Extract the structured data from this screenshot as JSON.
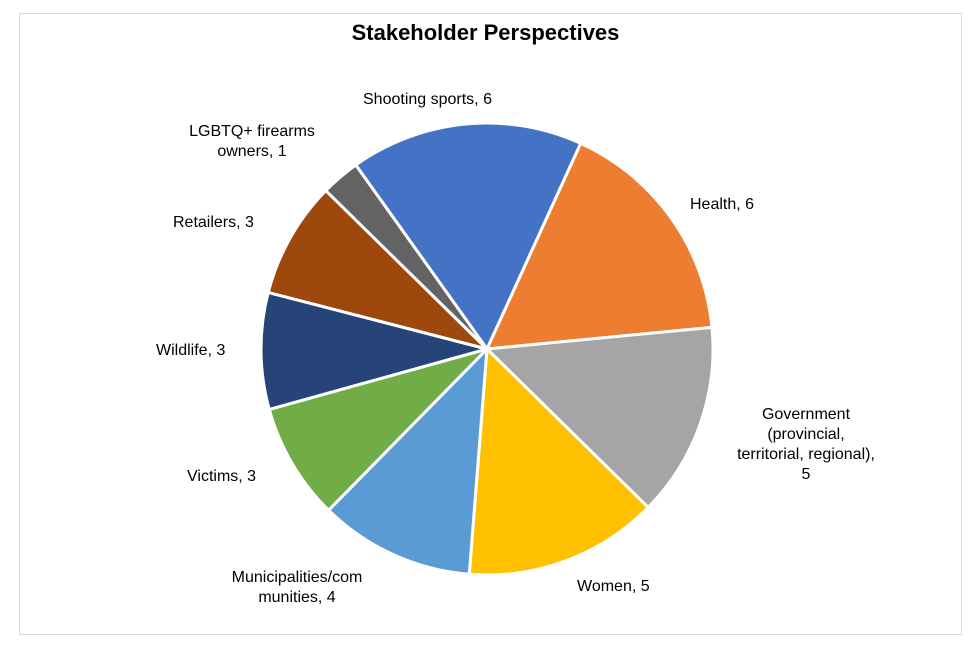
{
  "chart_data": {
    "type": "pie",
    "title": "Stakeholder Perspectives",
    "categories": [
      "Shooting sports",
      "Health",
      "Government (provincial, territorial, regional)",
      "Women",
      "Municipalities/communities",
      "Victims",
      "Wildlife",
      "Retailers",
      "LGBTQ+ firearms owners"
    ],
    "values": [
      6,
      6,
      5,
      5,
      4,
      3,
      3,
      3,
      1
    ],
    "colors": [
      "#4472C4",
      "#ED7D31",
      "#A5A5A5",
      "#FFC000",
      "#5B9BD5",
      "#70AD47",
      "#264478",
      "#9E480E",
      "#636363"
    ],
    "data_labels": [
      "Shooting sports, 6",
      "Health, 6",
      "Government (provincial, territorial, regional), 5",
      "Women, 5",
      "Municipalities/communities, 4",
      "Victims, 3",
      "Wildlife, 3",
      "Retailers, 3",
      "LGBTQ+ firearms owners, 1"
    ],
    "legend": "none",
    "start_angle_deg": -35.5,
    "direction": "clockwise"
  },
  "labels": {
    "shooting": [
      "Shooting sports, 6"
    ],
    "health": [
      "Health,  6"
    ],
    "government": [
      "Government",
      "(provincial,",
      "territorial, regional),",
      "5"
    ],
    "women": [
      "Women, 5"
    ],
    "municipalities": [
      "Municipalities/com",
      "munities, 4"
    ],
    "victims": [
      "Victims, 3"
    ],
    "wildlife": [
      "Wildlife, 3"
    ],
    "retailers": [
      "Retailers, 3"
    ],
    "lgbtq": [
      "LGBTQ+ firearms",
      "owners, 1"
    ]
  }
}
